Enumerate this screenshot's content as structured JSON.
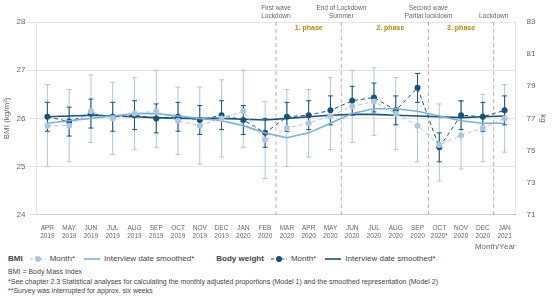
{
  "chart_data": {
    "type": "line",
    "categories": [
      "APR\n2019",
      "MAY\n2019",
      "JUN\n2019",
      "JUL\n2019",
      "AUG\n2019",
      "SEP\n2019",
      "OCT\n2019",
      "NOV\n2019",
      "DEC\n2019",
      "JAN\n2020",
      "FEB\n2020",
      "MAR\n2020",
      "APR\n2020",
      "MAY\n2020",
      "JUN\n2020",
      "JUL\n2020",
      "AUG\n2020",
      "SEP\n2020",
      "OCT\n2020*",
      "NOV\n2020",
      "DEC\n2020",
      "JAN\n2021"
    ],
    "series": [
      {
        "name": "Month*",
        "group": "BMI",
        "color": "#adc6e0",
        "marker": "circle",
        "line_style": "dashed",
        "values": [
          25.85,
          25.85,
          26.15,
          26.0,
          26.1,
          26.15,
          25.95,
          25.85,
          26.0,
          26.15,
          25.55,
          25.8,
          25.9,
          26.05,
          26.25,
          26.35,
          26.1,
          25.85,
          25.45,
          25.65,
          25.8,
          26.0
        ],
        "upper": [
          26.7,
          26.6,
          26.9,
          26.75,
          26.85,
          27.0,
          26.65,
          26.65,
          26.8,
          27.0,
          26.35,
          26.6,
          26.6,
          26.85,
          27.0,
          27.05,
          26.85,
          26.6,
          26.3,
          26.35,
          26.5,
          26.7
        ],
        "lower": [
          25.0,
          25.1,
          25.5,
          25.25,
          25.35,
          25.4,
          25.25,
          25.05,
          25.2,
          25.4,
          24.75,
          25.0,
          25.2,
          25.35,
          25.5,
          25.65,
          25.35,
          25.1,
          24.7,
          24.95,
          25.1,
          25.3
        ]
      },
      {
        "name": "Interview date smoothed*",
        "group": "BMI",
        "color": "#7bafd4",
        "marker": "none",
        "line_style": "solid",
        "values": [
          25.9,
          25.95,
          26.0,
          26.05,
          26.1,
          26.1,
          26.05,
          26.0,
          25.95,
          25.85,
          25.7,
          25.6,
          25.7,
          25.9,
          26.1,
          26.2,
          26.2,
          26.15,
          26.05,
          25.95,
          25.9,
          25.9
        ]
      },
      {
        "name": "Month*",
        "group": "Body weight",
        "axis": "y2",
        "color": "#1a5276",
        "marker": "circle",
        "line_style": "dashed",
        "values": [
          77.1,
          76.8,
          77.3,
          77.1,
          77.2,
          77.0,
          77.1,
          76.9,
          77.2,
          76.9,
          76.1,
          77.1,
          77.2,
          77.5,
          78.1,
          78.3,
          77.5,
          78.9,
          75.2,
          77.2,
          77.1,
          77.5
        ],
        "upper": [
          78.0,
          77.7,
          78.2,
          78.0,
          78.1,
          77.9,
          78.0,
          77.8,
          78.1,
          77.8,
          77.0,
          78.0,
          78.1,
          78.4,
          79.0,
          79.2,
          78.4,
          79.8,
          76.1,
          78.1,
          78.0,
          78.4
        ],
        "lower": [
          76.2,
          75.9,
          76.4,
          76.2,
          76.3,
          76.1,
          76.2,
          76.0,
          76.3,
          76.0,
          75.2,
          76.2,
          76.3,
          76.6,
          77.2,
          77.4,
          76.6,
          78.0,
          74.3,
          76.3,
          76.2,
          76.6
        ]
      },
      {
        "name": "Interview date smoothed*",
        "group": "Body weight",
        "axis": "y2",
        "color": "#1a5276",
        "marker": "none",
        "line_style": "solid",
        "values": [
          77.1,
          77.15,
          77.2,
          77.15,
          77.1,
          77.05,
          77.0,
          77.0,
          77.0,
          76.95,
          76.9,
          77.0,
          77.1,
          77.2,
          77.25,
          77.25,
          77.2,
          77.15,
          77.1,
          77.05,
          77.1,
          77.15
        ]
      }
    ],
    "xlabel": "Month/Year",
    "ylabel": "BMI (kg/m²)",
    "y2label": "kg",
    "ylim": [
      24,
      28
    ],
    "yticks": [
      24,
      25,
      26,
      27,
      28
    ],
    "y2lim": [
      71,
      83
    ],
    "y2ticks": [
      71,
      73,
      75,
      77,
      79,
      81,
      83
    ],
    "grid": true,
    "legend": "bottom",
    "vlines": [
      {
        "x": 10.5,
        "label": "First wave\nLockdown"
      },
      {
        "x": 13.5,
        "label": "End of Lockdown\nSummer"
      },
      {
        "x": 17.5,
        "label": "Second wave\nPartial lockdown"
      },
      {
        "x": 20.5,
        "label": "Lockdown"
      }
    ],
    "annotations": [
      {
        "x": 12.0,
        "text": "1. phase",
        "color": "#b8860b"
      },
      {
        "x": 15.75,
        "text": "2. phase",
        "color": "#b8860b"
      },
      {
        "x": 19.0,
        "text": "3. phase",
        "color": "#b8860b"
      }
    ],
    "notes": [
      "BMI = Body Mass Index",
      "*See chapter 2.3 Statistical analyses for calculating the monthly adjusted proportions (Model 1) and the smoothed representation (Model 2)",
      "**Survey was interrupted for approx. six weeks"
    ]
  }
}
